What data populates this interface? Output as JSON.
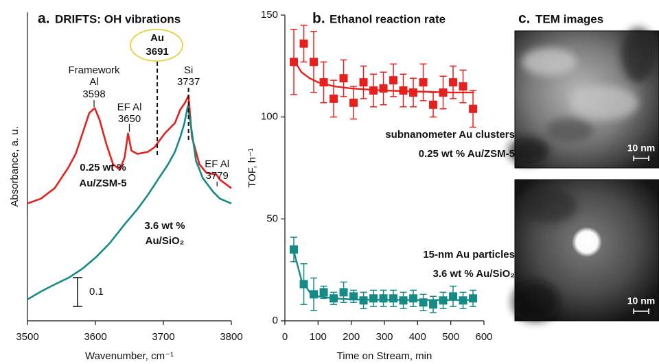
{
  "chart_data": [
    {
      "type": "line",
      "label": "a.",
      "title": "DRIFTS: OH vibrations",
      "x_label": "Wavenumber, cm⁻¹",
      "y_label": "Absorbance, a. u.",
      "xlim": [
        3500,
        3800
      ],
      "xticks": [
        3500,
        3600,
        3700,
        3800
      ],
      "ylim": [
        0,
        1.07
      ],
      "series": [
        {
          "name": [
            "0.25 wt %",
            "Au/ZSM-5"
          ],
          "color": "#e8201d",
          "x": [
            3500,
            3520,
            3540,
            3560,
            3571,
            3581,
            3591,
            3599,
            3606,
            3616,
            3626,
            3636,
            3643,
            3648,
            3653,
            3662,
            3677,
            3687,
            3702,
            3717,
            3725,
            3732,
            3737,
            3742,
            3753,
            3763,
            3778,
            3783,
            3800
          ],
          "values": [
            0.407,
            0.424,
            0.46,
            0.531,
            0.579,
            0.65,
            0.721,
            0.738,
            0.698,
            0.614,
            0.543,
            0.524,
            0.567,
            0.65,
            0.59,
            0.579,
            0.586,
            0.602,
            0.65,
            0.686,
            0.733,
            0.757,
            0.781,
            0.638,
            0.543,
            0.514,
            0.507,
            0.49,
            0.46
          ]
        },
        {
          "name": [
            "3.6 wt %",
            "Au/SiO₂"
          ],
          "color": "#168a84",
          "x": [
            3500,
            3520,
            3540,
            3561,
            3581,
            3601,
            3621,
            3641,
            3662,
            3677,
            3692,
            3707,
            3717,
            3725,
            3731,
            3736,
            3740,
            3748,
            3758,
            3773,
            3783,
            3800
          ],
          "values": [
            0.074,
            0.102,
            0.126,
            0.15,
            0.181,
            0.221,
            0.269,
            0.329,
            0.388,
            0.436,
            0.49,
            0.543,
            0.586,
            0.638,
            0.686,
            0.745,
            0.686,
            0.555,
            0.495,
            0.448,
            0.424,
            0.407
          ]
        }
      ],
      "annotations": [
        {
          "text": [
            "Framework",
            "Al"
          ],
          "x": 3598
        },
        {
          "text": [
            "EF Al"
          ],
          "x": 3650
        },
        {
          "text": [
            "Au"
          ],
          "x": 3691,
          "dashed": true,
          "highlight": true
        },
        {
          "text": [
            "Si"
          ],
          "x": 3737,
          "dashed": true
        },
        {
          "text": [
            "EF Al"
          ],
          "x": 3779
        }
      ],
      "scale_bar": 0.1
    },
    {
      "type": "scatter",
      "label": "b.",
      "title": "Ethanol reaction rate",
      "x_label": "Time on Stream, min",
      "y_label": "TOF, h⁻¹",
      "xlim": [
        0,
        600
      ],
      "xticks": [
        0,
        100,
        200,
        300,
        400,
        500,
        600
      ],
      "ylim": [
        0,
        150
      ],
      "yticks": [
        0,
        50,
        100,
        150
      ],
      "series": [
        {
          "name": [
            "subnanometer Au clusters",
            "0.25 wt % Au/ZSM-5"
          ],
          "color": "#e8201d",
          "x": [
            27,
            57,
            87,
            117,
            147,
            177,
            207,
            237,
            267,
            297,
            327,
            357,
            387,
            417,
            447,
            477,
            507,
            537,
            567
          ],
          "values": [
            127,
            136,
            127,
            117,
            109,
            119,
            107,
            117,
            113,
            114,
            118,
            113,
            112,
            117,
            106,
            112,
            117,
            115,
            104
          ],
          "errors": [
            16,
            9,
            15,
            10,
            9,
            9,
            8,
            8,
            8,
            8,
            8,
            8,
            7,
            9,
            6,
            8,
            8,
            8,
            9
          ],
          "fit_x": [
            27,
            50,
            75,
            100,
            150,
            200,
            300,
            400,
            500,
            570
          ],
          "fit_values": [
            128,
            122,
            119,
            117,
            115,
            114,
            113,
            112.5,
            112,
            112
          ]
        },
        {
          "name": [
            "15-nm Au particles",
            "3.6 wt % Au/SiO₂"
          ],
          "color": "#168a84",
          "x": [
            27,
            57,
            87,
            117,
            147,
            177,
            207,
            237,
            267,
            297,
            327,
            357,
            387,
            417,
            447,
            477,
            507,
            537,
            567
          ],
          "values": [
            35,
            18,
            13,
            14,
            11,
            14,
            12,
            10,
            11,
            11,
            11,
            10,
            11,
            9,
            8,
            10,
            12,
            10,
            11
          ],
          "errors": [
            6,
            10,
            8,
            3,
            3,
            5,
            3,
            4,
            4,
            4,
            4,
            4,
            4,
            4,
            4,
            4,
            5,
            4,
            4
          ],
          "fit_x": [
            27,
            50,
            75,
            100,
            150,
            200,
            300,
            400,
            500,
            570
          ],
          "fit_values": [
            34,
            20,
            14,
            12,
            11,
            10.5,
            10.3,
            10.2,
            10.2,
            10.2
          ]
        }
      ]
    },
    {
      "type": "image",
      "label": "c.",
      "title": "TEM images",
      "images": [
        {
          "scale_bar": "10 nm"
        },
        {
          "scale_bar": "10 nm"
        }
      ]
    }
  ]
}
